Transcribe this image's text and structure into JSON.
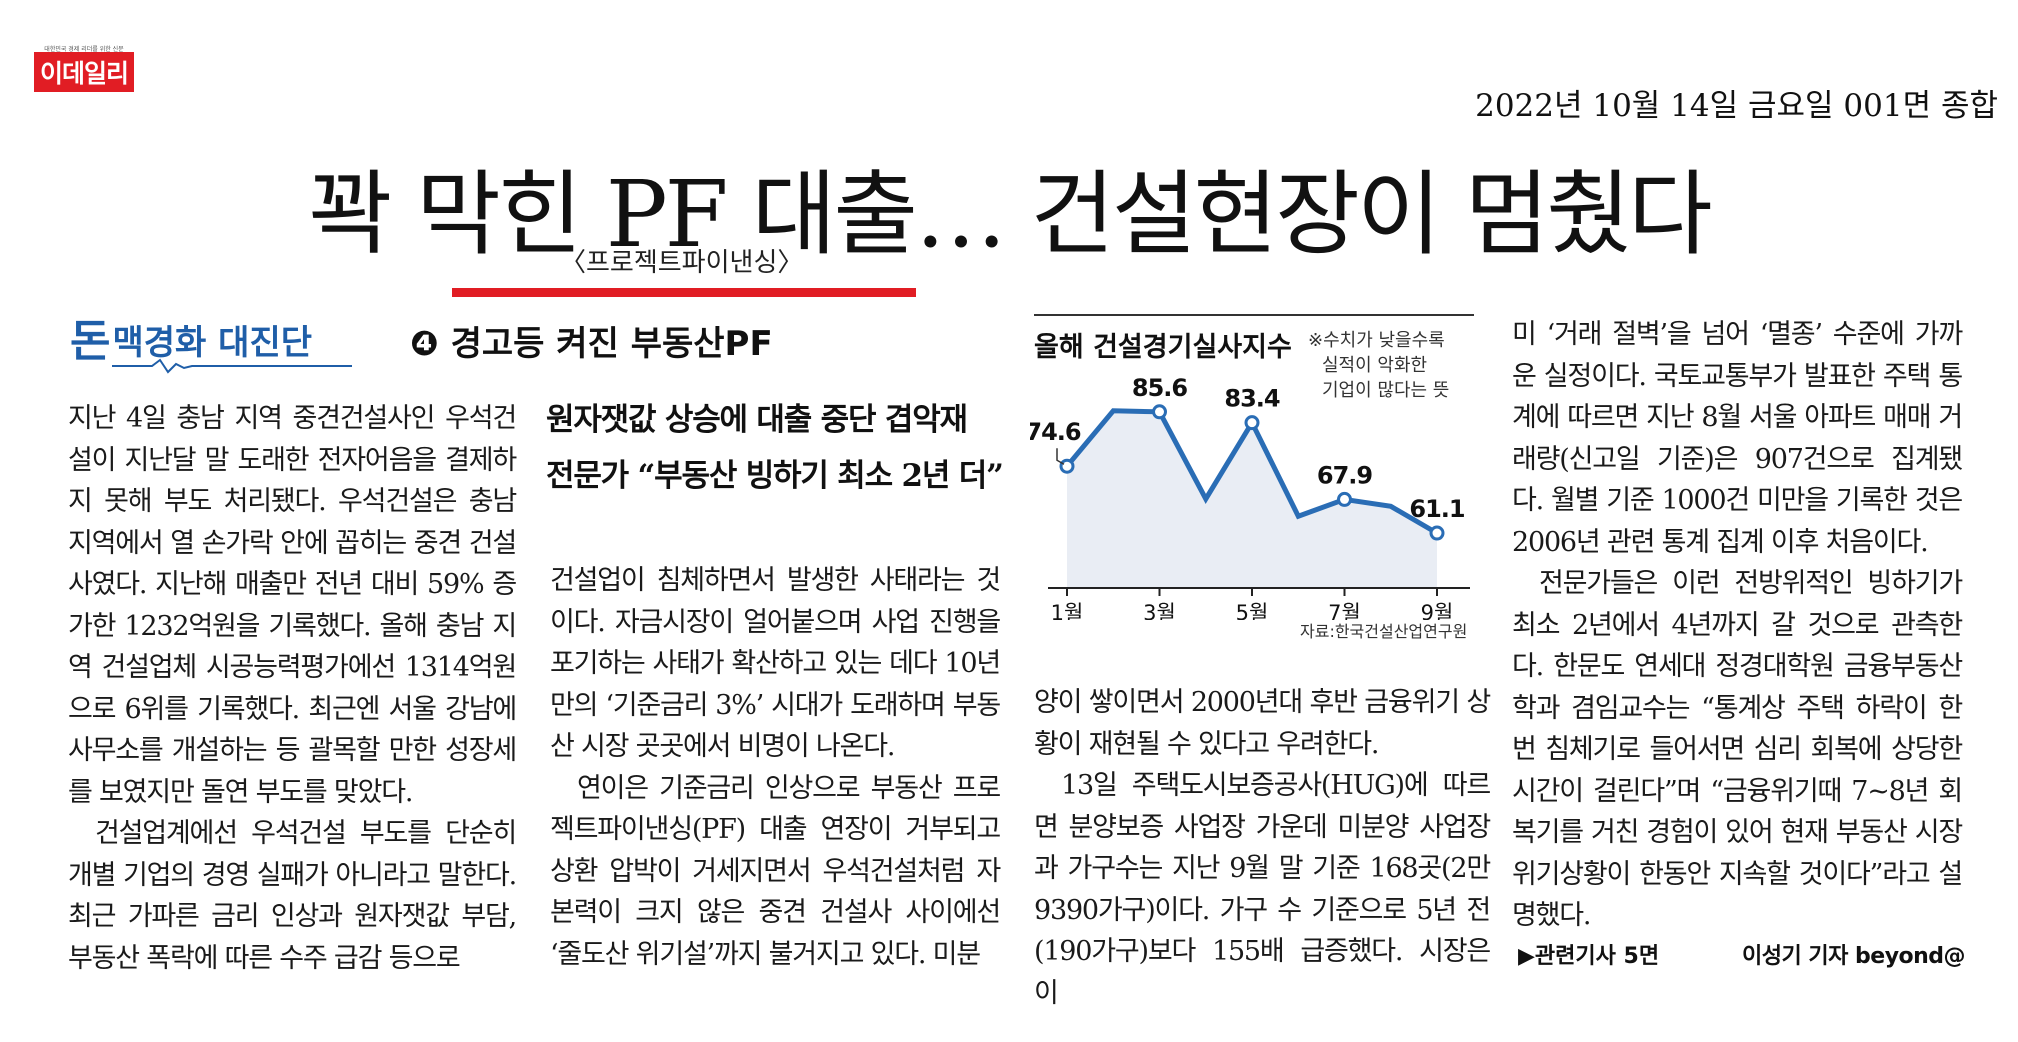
{
  "masthead": {
    "logo_text": "이데일리",
    "logo_tagline": "대한민국 경제 리더를 위한 신문",
    "dateline": "2022년 10월 14일 금요일 001면 종합",
    "brand_color": "#e11d24"
  },
  "headline": {
    "title": "꽉 막힌 PF 대출… 건설현장이 멈췄다",
    "note": "〈프로젝트파이낸싱〉"
  },
  "series": {
    "label_big": "돈",
    "label_rest": "맥경화 대진단",
    "kicker": "❹ 경고등 켜진 부동산PF"
  },
  "subheads": [
    "원자잿값 상승에 대출 중단 겹악재",
    "전문가 “부동산 빙하기 최소 2년 더”"
  ],
  "columns": {
    "col1": [
      "지난 4일 충남 지역 중견건설사인 우석건설이 지난달 말 도래한 전자어음을 결제하지 못해 부도 처리됐다. 우석건설은 충남 지역에서 열 손가락 안에 꼽히는 중견 건설사였다. 지난해 매출만 전년 대비 59% 증가한 1232억원을 기록했다. 올해 충남 지역 건설업체 시공능력평가에선 1314억원으로 6위를 기록했다. 최근엔 서울 강남에 사무소를 개설하는 등 괄목할 만한 성장세를 보였지만 돌연 부도를 맞았다.",
      "건설업계에선 우석건설 부도를 단순히 개별 기업의 경영 실패가 아니라고 말한다. 최근 가파른 금리 인상과 원자잿값 부담, 부동산 폭락에 따른 수주 급감 등으로"
    ],
    "col2": [
      "건설업이 침체하면서 발생한 사태라는 것이다. 자금시장이 얼어붙으며 사업 진행을 포기하는 사태가 확산하고 있는 데다 10년 만의 ‘기준금리 3%’ 시대가 도래하며 부동산 시장 곳곳에서 비명이 나온다.",
      "연이은 기준금리 인상으로 부동산 프로젝트파이낸싱(PF) 대출 연장이 거부되고 상환 압박이 거세지면서 우석건설처럼 자본력이 크지 않은 중견 건설사 사이에선 ‘줄도산 위기설’까지 불거지고 있다. 미분"
    ],
    "col3": [
      "양이 쌓이면서 2000년대 후반 금융위기 상황이 재현될 수 있다고 우려한다.",
      "13일 주택도시보증공사(HUG)에 따르면 분양보증 사업장 가운데 미분양 사업장과 가구수는 지난 9월 말 기준 168곳(2만 9390가구)이다. 가구 수 기준으로 5년 전(190가구)보다 155배 급증했다. 시장은 이"
    ],
    "col4": [
      "미 ‘거래 절벽’을 넘어 ‘멸종’ 수준에 가까운 실정이다. 국토교통부가 발표한 주택 통계에 따르면 지난 8월 서울 아파트 매매 거래량(신고일 기준)은 907건으로 집계됐다. 월별 기준 1000건 미만을 기록한 것은 2006년 관련 통계 집계 이후 처음이다.",
      "전문가들은 이런 전방위적인 빙하기가 최소 2년에서 4년까지 갈 것으로 관측한다. 한문도 연세대 정경대학원 금융부동산학과 겸임교수는 “통계상 주택 하락이 한번 침체기로 들어서면 심리 회복에 상당한 시간이 걸린다”며 “금융위기때 7~8년 회복기를 거친 경험이 있어 현재 부동산 시장 위기상황이 한동안 지속할 것이다”라고 설명했다."
    ]
  },
  "footer": {
    "related": "▶관련기사 5면",
    "byline": "이성기 기자 beyond@"
  },
  "chart_data": {
    "type": "line",
    "title": "올해 건설경기실사지수",
    "note_lines": [
      "※수치가 낮을수록",
      "실적이 악화한",
      "기업이 많다는 뜻"
    ],
    "source": "자료:한국건설산업연구원",
    "x": [
      1,
      2,
      3,
      4,
      5,
      6,
      7,
      8,
      9
    ],
    "x_tick_labels": [
      "1월",
      "3월",
      "5월",
      "7월",
      "9월"
    ],
    "x_tick_positions": [
      1,
      3,
      5,
      7,
      9
    ],
    "values": [
      74.6,
      85.8,
      85.6,
      68,
      83.4,
      64.5,
      67.9,
      66.5,
      61.1
    ],
    "labeled_points": [
      {
        "x": 1,
        "label": "74.6"
      },
      {
        "x": 3,
        "label": "85.6"
      },
      {
        "x": 5,
        "label": "83.4"
      },
      {
        "x": 7,
        "label": "67.9"
      },
      {
        "x": 9,
        "label": "61.1"
      }
    ],
    "ylim": [
      50,
      90
    ],
    "line_color": "#2a6db5",
    "fill_color": "#e9edf4",
    "grid": false
  }
}
